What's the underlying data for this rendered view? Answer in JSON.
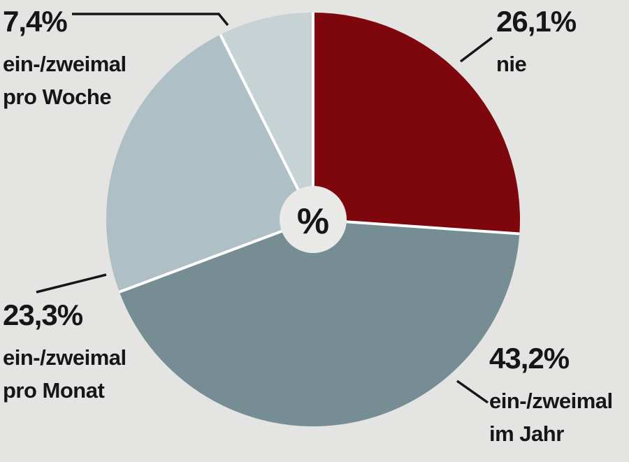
{
  "colors": {
    "background": "#e4e4e3",
    "hole": "#e9e9e7",
    "separator": "#ffffff",
    "text": "#161616",
    "slice_nie": "#7d070d",
    "slice_jahr": "#768e93",
    "slice_monat": "#aec0c5",
    "slice_woche": "#c7d2d4"
  },
  "chart_data": {
    "type": "pie",
    "style": "pie-with-small-center-hole",
    "title": "",
    "center_label": "%",
    "units": "percent",
    "direction": "clockwise",
    "start_angle_deg": 0,
    "legend_position": "none",
    "slices": [
      {
        "label": "nie",
        "value": 26.1,
        "display": "26,1%",
        "color": "#7d070d"
      },
      {
        "label": "ein-/zweimal im Jahr",
        "value": 43.2,
        "display": "43,2%",
        "color": "#768e93"
      },
      {
        "label": "ein-/zweimal pro Monat",
        "value": 23.3,
        "display": "23,3%",
        "color": "#aec0c5"
      },
      {
        "label": "ein-/zweimal pro Woche",
        "value": 7.4,
        "display": "7,4%",
        "color": "#c7d2d4"
      }
    ]
  },
  "labels": {
    "woche": {
      "pct": "7,4%",
      "line1": "ein-/zweimal",
      "line2": "pro Woche"
    },
    "nie": {
      "pct": "26,1%",
      "line1": "nie"
    },
    "monat": {
      "pct": "23,3%",
      "line1": "ein-/zweimal",
      "line2": "pro Monat"
    },
    "jahr": {
      "pct": "43,2%",
      "line1": "ein-/zweimal",
      "line2": "im Jahr"
    }
  }
}
